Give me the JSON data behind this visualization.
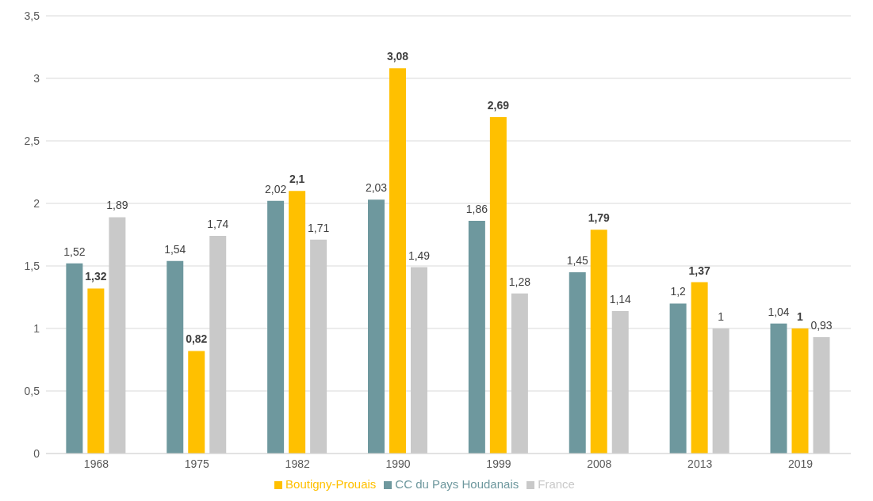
{
  "chart_data": {
    "type": "bar",
    "categories": [
      "1968",
      "1975",
      "1982",
      "1990",
      "1999",
      "2008",
      "2013",
      "2019"
    ],
    "series": [
      {
        "name": "CC du Pays Houdanais",
        "color": "#6e989e",
        "values": [
          1.52,
          1.54,
          2.02,
          2.03,
          1.86,
          1.45,
          1.2,
          1.04
        ],
        "value_labels": [
          "1,52",
          "1,54",
          "2,02",
          "2,03",
          "1,86",
          "1,45",
          "1,2",
          "1,04"
        ]
      },
      {
        "name": "Boutigny-Prouais",
        "color": "#ffc000",
        "values": [
          1.32,
          0.82,
          2.1,
          3.08,
          2.69,
          1.79,
          1.37,
          1
        ],
        "value_labels": [
          "1,32",
          "0,82",
          "2,1",
          "3,08",
          "2,69",
          "1,79",
          "1,37",
          "1"
        ]
      },
      {
        "name": "France",
        "color": "#c9c9c9",
        "values": [
          1.89,
          1.74,
          1.71,
          1.49,
          1.28,
          1.14,
          1,
          0.93
        ],
        "value_labels": [
          "1,89",
          "1,74",
          "1,71",
          "1,49",
          "1,28",
          "1,14",
          "1",
          "0,93"
        ]
      }
    ],
    "ylim": [
      0,
      3.5
    ],
    "yticks": [
      0,
      {
        "value": 0.5,
        "label": "0,5"
      },
      1,
      {
        "value": 1.5,
        "label": "1,5"
      },
      2,
      {
        "value": 2.5,
        "label": "2,5"
      },
      3,
      {
        "value": 3.5,
        "label": "3,5"
      }
    ],
    "grid": "y",
    "legend": "bottom"
  }
}
